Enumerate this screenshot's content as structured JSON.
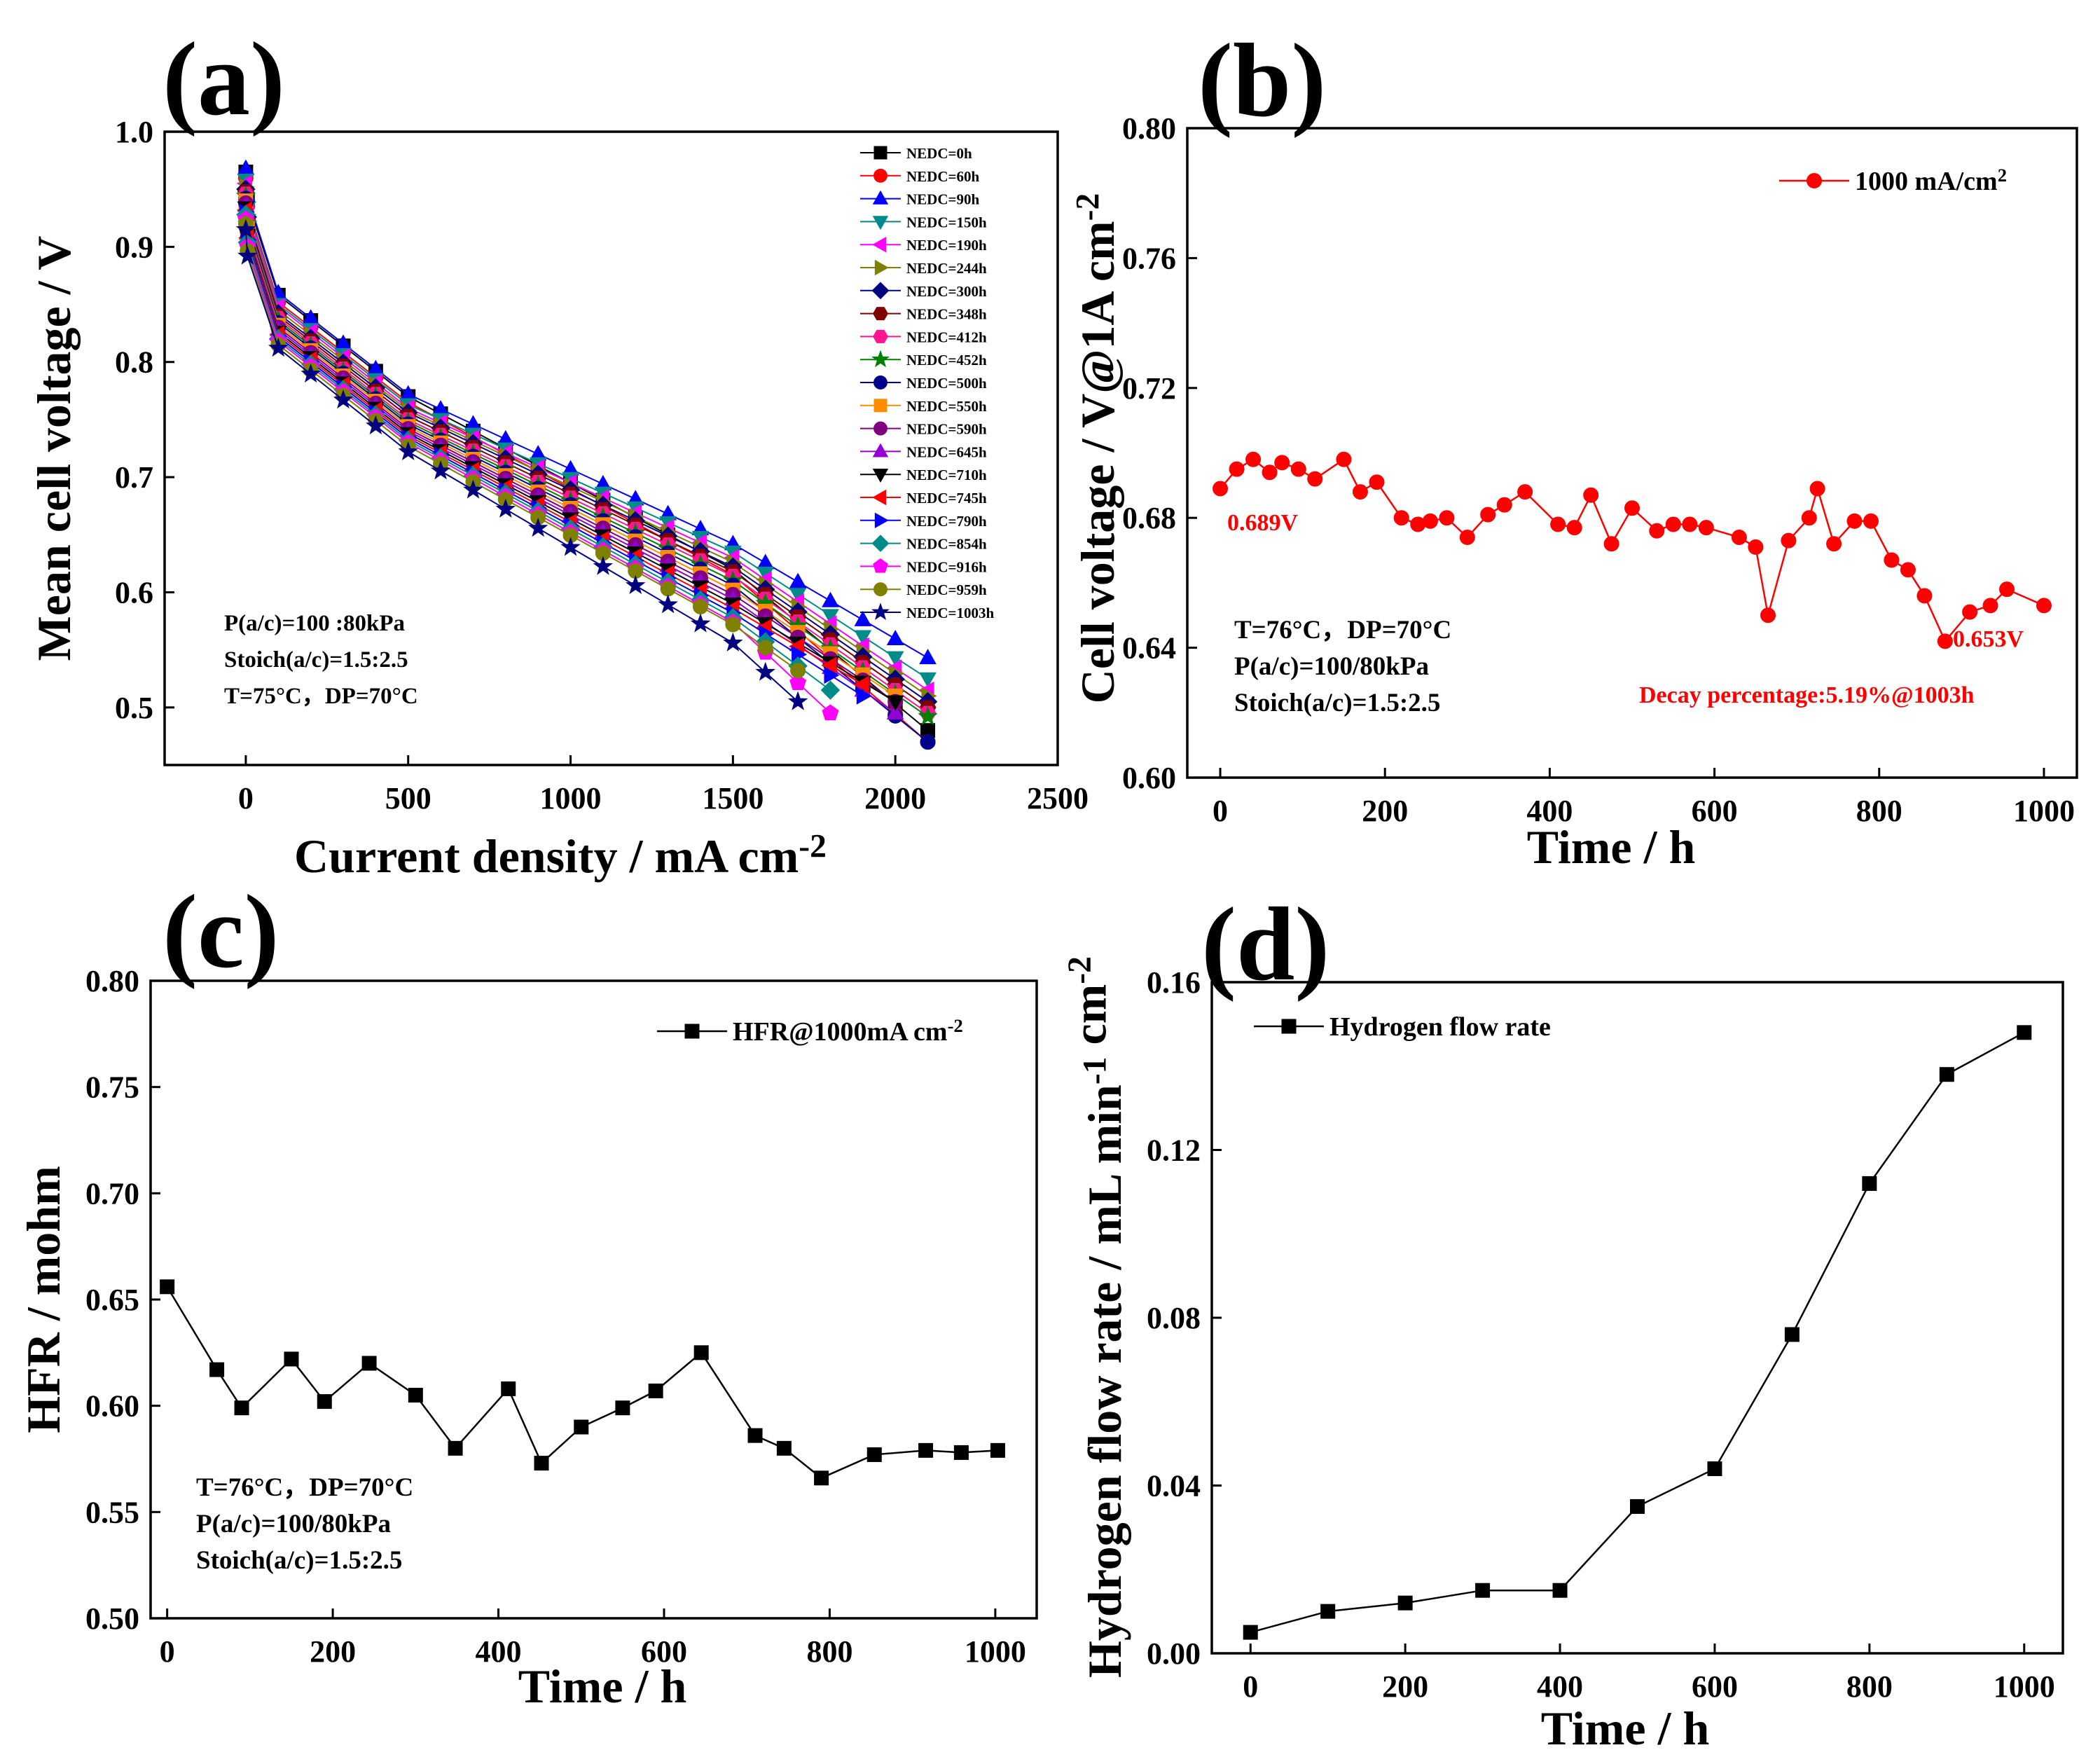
{
  "chart_data": [
    {
      "id": "a",
      "panel_label": "(a)",
      "type": "line",
      "xlabel": "Current density / mA cm",
      "xlabel_sup": "-2",
      "ylabel": "Mean cell voltage / V",
      "xlim": [
        -250,
        2500
      ],
      "ylim": [
        0.45,
        1.0
      ],
      "xticks": [
        0,
        500,
        1000,
        1500,
        2000,
        2500
      ],
      "yticks": [
        0.5,
        0.6,
        0.7,
        0.8,
        0.9,
        1.0
      ],
      "x": [
        0,
        5,
        100,
        200,
        300,
        400,
        500,
        600,
        700,
        800,
        900,
        1000,
        1100,
        1200,
        1300,
        1400,
        1500,
        1600,
        1700,
        1800,
        1900,
        2000,
        2100
      ],
      "conditions": [
        "P(a/c)=100 :80kPa",
        "Stoich(a/c)=1.5:2.5",
        "T=75°C，DP=70°C"
      ],
      "series": [
        {
          "name": "NEDC=0h",
          "color": "#000000",
          "marker": "square",
          "x_end": 2100,
          "v_start": 0.965,
          "v_100": 0.858,
          "v_500": 0.77,
          "v_1500": 0.62,
          "v_end": 0.48
        },
        {
          "name": "NEDC=60h",
          "color": "#ff0000",
          "marker": "circle",
          "x_end": 2100,
          "v_start": 0.96,
          "v_100": 0.852,
          "v_500": 0.765,
          "v_1500": 0.615,
          "v_end": 0.47
        },
        {
          "name": "NEDC=90h",
          "color": "#0000ff",
          "marker": "triangle-up",
          "x_end": 2100,
          "v_start": 0.968,
          "v_100": 0.86,
          "v_500": 0.772,
          "v_1500": 0.642,
          "v_end": 0.543
        },
        {
          "name": "NEDC=150h",
          "color": "#008b8b",
          "marker": "triangle-down",
          "x_end": 2100,
          "v_start": 0.958,
          "v_100": 0.85,
          "v_500": 0.763,
          "v_1500": 0.635,
          "v_end": 0.525
        },
        {
          "name": "NEDC=190h",
          "color": "#ff00ff",
          "marker": "triangle-left",
          "x_end": 2100,
          "v_start": 0.955,
          "v_100": 0.848,
          "v_500": 0.76,
          "v_1500": 0.63,
          "v_end": 0.515
        },
        {
          "name": "NEDC=244h",
          "color": "#808000",
          "marker": "triangle-right",
          "x_end": 2100,
          "v_start": 0.952,
          "v_100": 0.845,
          "v_500": 0.758,
          "v_1500": 0.626,
          "v_end": 0.51
        },
        {
          "name": "NEDC=300h",
          "color": "#000080",
          "marker": "diamond",
          "x_end": 2100,
          "v_start": 0.95,
          "v_100": 0.842,
          "v_500": 0.756,
          "v_1500": 0.622,
          "v_end": 0.505
        },
        {
          "name": "NEDC=348h",
          "color": "#800000",
          "marker": "hexagon",
          "x_end": 2100,
          "v_start": 0.948,
          "v_100": 0.84,
          "v_500": 0.753,
          "v_1500": 0.618,
          "v_end": 0.5
        },
        {
          "name": "NEDC=412h",
          "color": "#ff1493",
          "marker": "hexagon",
          "x_end": 2100,
          "v_start": 0.946,
          "v_100": 0.838,
          "v_500": 0.75,
          "v_1500": 0.614,
          "v_end": 0.495
        },
        {
          "name": "NEDC=452h",
          "color": "#008000",
          "marker": "star",
          "x_end": 2100,
          "v_start": 0.944,
          "v_100": 0.836,
          "v_500": 0.748,
          "v_1500": 0.61,
          "v_end": 0.492
        },
        {
          "name": "NEDC=500h",
          "color": "#00008b",
          "marker": "circle",
          "x_end": 2100,
          "v_start": 0.942,
          "v_100": 0.834,
          "v_500": 0.746,
          "v_1500": 0.606,
          "v_end": 0.47
        },
        {
          "name": "NEDC=550h",
          "color": "#ff8c00",
          "marker": "square",
          "x_end": 2000,
          "v_start": 0.94,
          "v_100": 0.832,
          "v_500": 0.744,
          "v_1500": 0.602,
          "v_end": 0.51
        },
        {
          "name": "NEDC=590h",
          "color": "#800080",
          "marker": "circle",
          "x_end": 2000,
          "v_start": 0.938,
          "v_100": 0.83,
          "v_500": 0.742,
          "v_1500": 0.598,
          "v_end": 0.505
        },
        {
          "name": "NEDC=645h",
          "color": "#9400d3",
          "marker": "triangle-up",
          "x_end": 2000,
          "v_start": 0.936,
          "v_100": 0.828,
          "v_500": 0.74,
          "v_1500": 0.594,
          "v_end": 0.495
        },
        {
          "name": "NEDC=710h",
          "color": "#000000",
          "marker": "triangle-down",
          "x_end": 2000,
          "v_start": 0.934,
          "v_100": 0.826,
          "v_500": 0.738,
          "v_1500": 0.59,
          "v_end": 0.505
        },
        {
          "name": "NEDC=745h",
          "color": "#ff0000",
          "marker": "triangle-left",
          "x_end": 1900,
          "v_start": 0.932,
          "v_100": 0.824,
          "v_500": 0.736,
          "v_1500": 0.586,
          "v_end": 0.52
        },
        {
          "name": "NEDC=790h",
          "color": "#0000ff",
          "marker": "triangle-right",
          "x_end": 1900,
          "v_start": 0.93,
          "v_100": 0.822,
          "v_500": 0.734,
          "v_1500": 0.582,
          "v_end": 0.51
        },
        {
          "name": "NEDC=854h",
          "color": "#008b8b",
          "marker": "diamond",
          "x_end": 1800,
          "v_start": 0.928,
          "v_100": 0.82,
          "v_500": 0.732,
          "v_1500": 0.578,
          "v_end": 0.515
        },
        {
          "name": "NEDC=916h",
          "color": "#ff00ff",
          "marker": "pentagon",
          "x_end": 1800,
          "v_start": 0.924,
          "v_100": 0.818,
          "v_500": 0.73,
          "v_1500": 0.574,
          "v_end": 0.495
        },
        {
          "name": "NEDC=959h",
          "color": "#808000",
          "marker": "circle",
          "x_end": 1700,
          "v_start": 0.92,
          "v_100": 0.815,
          "v_500": 0.727,
          "v_1500": 0.572,
          "v_end": 0.532
        },
        {
          "name": "NEDC=1003h",
          "color": "#000080",
          "marker": "star",
          "x_end": 1700,
          "v_start": 0.915,
          "v_100": 0.812,
          "v_500": 0.722,
          "v_1500": 0.556,
          "v_end": 0.505
        }
      ]
    },
    {
      "id": "b",
      "panel_label": "(b)",
      "type": "line",
      "xlabel": "Time /  h",
      "ylabel": "Cell voltage / V@1A cm",
      "ylabel_sup": "-2",
      "xlim": [
        -40,
        1040
      ],
      "ylim": [
        0.6,
        0.8
      ],
      "xticks": [
        0,
        200,
        400,
        600,
        800,
        1000
      ],
      "yticks": [
        0.6,
        0.64,
        0.68,
        0.72,
        0.76,
        0.8
      ],
      "ytick_labels": [
        "0.60",
        "0.64",
        "0.68",
        "0.72",
        "0.76",
        "0.80"
      ],
      "legend": "1000 mA/cm",
      "legend_sup": "2",
      "color": "#ff0000",
      "x": [
        0,
        20,
        40,
        60,
        75,
        95,
        115,
        150,
        170,
        190,
        220,
        240,
        255,
        275,
        300,
        325,
        345,
        370,
        410,
        430,
        450,
        475,
        500,
        530,
        550,
        570,
        590,
        630,
        650,
        665,
        690,
        715,
        725,
        745,
        770,
        790,
        815,
        835,
        855,
        880,
        910,
        935,
        955,
        1000
      ],
      "values": [
        0.689,
        0.695,
        0.698,
        0.694,
        0.697,
        0.695,
        0.692,
        0.698,
        0.688,
        0.691,
        0.68,
        0.678,
        0.679,
        0.68,
        0.674,
        0.681,
        0.684,
        0.688,
        0.678,
        0.677,
        0.687,
        0.672,
        0.683,
        0.676,
        0.678,
        0.678,
        0.677,
        0.674,
        0.671,
        0.65,
        0.673,
        0.68,
        0.689,
        0.672,
        0.679,
        0.679,
        0.667,
        0.664,
        0.656,
        0.642,
        0.651,
        0.653,
        0.658,
        0.653
      ],
      "annotation_start": "0.689V",
      "annotation_end": "0.653V",
      "decay": "Decay percentage:5.19%@1003h",
      "conditions": [
        "T=76°C，DP=70°C",
        "P(a/c)=100/80kPa",
        "Stoich(a/c)=1.5:2.5"
      ]
    },
    {
      "id": "c",
      "panel_label": "(c)",
      "type": "line",
      "xlabel": "Time / h",
      "ylabel": "HFR / mohm",
      "xlim": [
        -20,
        1050
      ],
      "ylim": [
        0.5,
        0.8
      ],
      "xticks": [
        0,
        200,
        400,
        600,
        800,
        1000
      ],
      "yticks": [
        0.5,
        0.55,
        0.6,
        0.65,
        0.7,
        0.75,
        0.8
      ],
      "ytick_labels": [
        "0.50",
        "0.55",
        "0.60",
        "0.65",
        "0.70",
        "0.75",
        "0.80"
      ],
      "legend": "HFR@1000mA cm",
      "legend_sup": "-2",
      "color": "#000000",
      "x": [
        0,
        60,
        90,
        150,
        190,
        244,
        300,
        348,
        412,
        452,
        500,
        550,
        590,
        645,
        710,
        745,
        790,
        854,
        916,
        959,
        1003
      ],
      "values": [
        0.656,
        0.617,
        0.599,
        0.622,
        0.602,
        0.62,
        0.605,
        0.58,
        0.608,
        0.573,
        0.59,
        0.599,
        0.607,
        0.625,
        0.586,
        0.58,
        0.566,
        0.577,
        0.579,
        0.578,
        0.579
      ],
      "conditions": [
        "T=76°C，DP=70°C",
        "P(a/c)=100/80kPa",
        "Stoich(a/c)=1.5:2.5"
      ]
    },
    {
      "id": "d",
      "panel_label": "(d)",
      "type": "line",
      "xlabel": "Time / h",
      "ylabel": "Hydrogen flow rate / mL min",
      "ylabel_sup1": "-1",
      "ylabel_tail": "cm",
      "ylabel_sup2": "-2",
      "xlim": [
        -50,
        1050
      ],
      "ylim": [
        0.0,
        0.16
      ],
      "xticks": [
        0,
        200,
        400,
        600,
        800,
        1000
      ],
      "yticks": [
        0.0,
        0.04,
        0.08,
        0.12,
        0.16
      ],
      "ytick_labels": [
        "0.00",
        "0.04",
        "0.08",
        "0.12",
        "0.16"
      ],
      "legend": "Hydrogen flow rate",
      "color": "#000000",
      "x": [
        0,
        100,
        200,
        300,
        400,
        500,
        600,
        700,
        800,
        900,
        1000
      ],
      "values": [
        0.005,
        0.01,
        0.012,
        0.015,
        0.015,
        0.035,
        0.044,
        0.076,
        0.112,
        0.138,
        0.148
      ]
    }
  ]
}
